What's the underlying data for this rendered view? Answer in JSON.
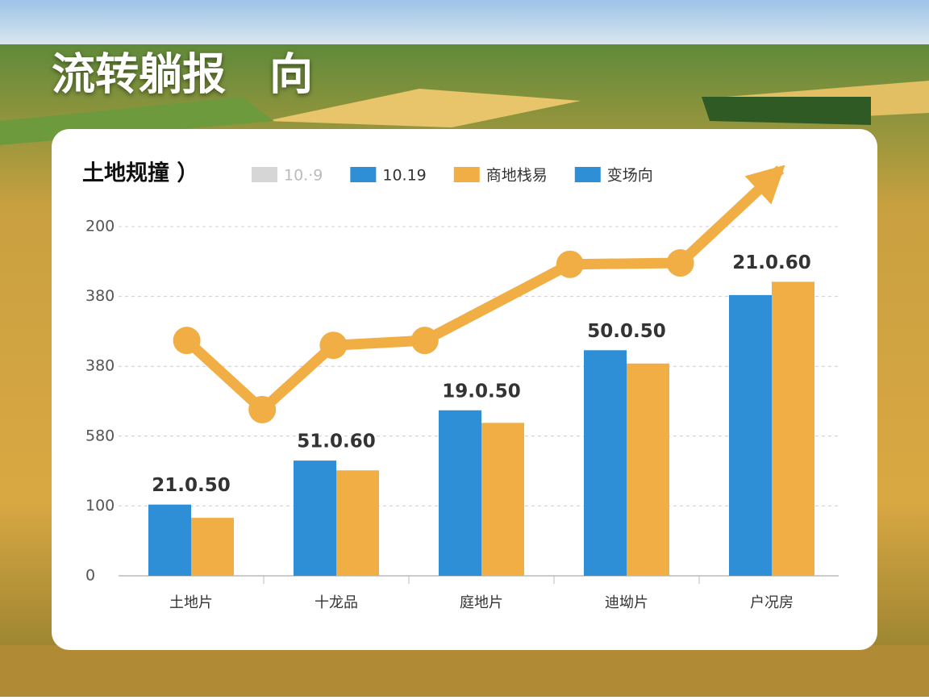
{
  "title": "流转躺报　向",
  "chart_data": {
    "type": "bar",
    "title": "土地规撞 ）",
    "legend": [
      {
        "name": "10.·9",
        "color": "#d6d6d6"
      },
      {
        "name": "10.19",
        "color": "#2e8fd6"
      },
      {
        "name": "商地栈易",
        "color": "#f0ae45"
      },
      {
        "name": "变场向",
        "color": "#2e8fd6"
      }
    ],
    "categories": [
      "土地片",
      "十龙品",
      "庭地片",
      "迪坳片",
      "户况房"
    ],
    "group_labels": [
      "21.0.50",
      "51.0.60",
      "19.0.50",
      "50.0.50",
      "21.0.60"
    ],
    "series": [
      {
        "type": "bar",
        "color": "#2e8fd6",
        "values": [
          1.02,
          1.65,
          2.37,
          3.23,
          4.02
        ]
      },
      {
        "type": "bar",
        "color": "#f0ae45",
        "values": [
          0.83,
          1.51,
          2.19,
          3.04,
          4.21
        ]
      },
      {
        "type": "line",
        "color": "#f0ae45",
        "x": [
          -0.03,
          0.49,
          0.98,
          1.61,
          2.61,
          3.37,
          4.06
        ],
        "values": [
          3.37,
          2.38,
          3.3,
          3.37,
          4.46,
          4.48,
          5.82
        ]
      }
    ],
    "ylim": [
      0,
      5
    ],
    "yticks": [
      {
        "value": 0,
        "label": "0"
      },
      {
        "value": 1,
        "label": "100"
      },
      {
        "value": 2,
        "label": "580"
      },
      {
        "value": 3,
        "label": "380"
      },
      {
        "value": 4,
        "label": "380"
      },
      {
        "value": 5,
        "label": "200"
      }
    ],
    "grid": true
  }
}
